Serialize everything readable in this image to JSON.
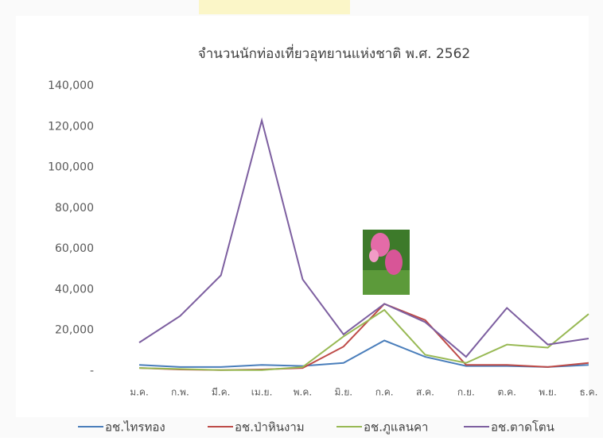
{
  "chart_data": {
    "type": "line",
    "title": "จำนวนนักท่องเที่ยวอุทยานแห่งชาติ พ.ศ. 2562",
    "categories": [
      "ม.ค.",
      "ก.พ.",
      "มี.ค.",
      "เม.ย.",
      "พ.ค.",
      "มิ.ย.",
      "ก.ค.",
      "ส.ค.",
      "ก.ย.",
      "ต.ค.",
      "พ.ย.",
      "ธ.ค."
    ],
    "series": [
      {
        "name": "อช.ไทรทอง",
        "color": "#4a7ebb",
        "values": [
          3000,
          2000,
          2000,
          3000,
          2500,
          4000,
          15000,
          7000,
          2500,
          2500,
          2000,
          3000
        ]
      },
      {
        "name": "อช.ป่าหินงาม",
        "color": "#be4b48",
        "values": [
          1500,
          800,
          500,
          800,
          1500,
          12000,
          33000,
          25000,
          3000,
          3000,
          2000,
          4000
        ]
      },
      {
        "name": "อช.ภูแลนคา",
        "color": "#98b954",
        "values": [
          1500,
          1000,
          500,
          500,
          2000,
          17000,
          30000,
          8000,
          4000,
          13000,
          11500,
          28000
        ]
      },
      {
        "name": "อช.ตาดโตน",
        "color": "#7d5fa0",
        "values": [
          14000,
          27000,
          47000,
          123000,
          45000,
          18000,
          33000,
          24000,
          7000,
          31000,
          13000,
          16000
        ]
      }
    ],
    "ylim": [
      0,
      140000
    ],
    "yticks": [
      {
        "value": 0,
        "label": "-"
      },
      {
        "value": 20000,
        "label": "20,000"
      },
      {
        "value": 40000,
        "label": "40,000"
      },
      {
        "value": 60000,
        "label": "60,000"
      },
      {
        "value": 80000,
        "label": "80,000"
      },
      {
        "value": 100000,
        "label": "100,000"
      },
      {
        "value": 120000,
        "label": "120,000"
      },
      {
        "value": 140000,
        "label": "140,000"
      }
    ],
    "grid": false,
    "legend": "bottom"
  }
}
